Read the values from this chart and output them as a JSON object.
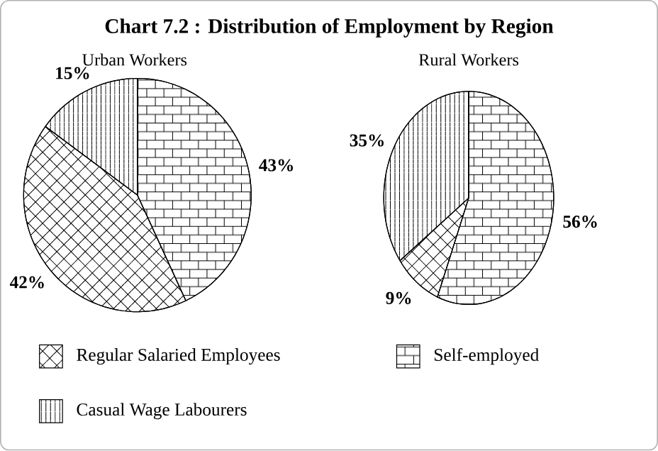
{
  "chart_data": {
    "type": "pie",
    "title": "Chart 7.2 : Distribution of Employment by Region",
    "categories": [
      "Regular Salaried Employees",
      "Self-employed",
      "Casual Wage Labourers"
    ],
    "colors": [
      "#ffffff",
      "#ffffff",
      "#ffffff"
    ],
    "legend": "bottom",
    "series": [
      {
        "name": "Urban Workers",
        "values": [
          42,
          43,
          15
        ],
        "value_labels": [
          "42%",
          "43%",
          "15%"
        ]
      },
      {
        "name": "Rural Workers",
        "values": [
          9,
          56,
          35
        ],
        "value_labels": [
          "9%",
          "56%",
          "35%"
        ]
      }
    ]
  }
}
